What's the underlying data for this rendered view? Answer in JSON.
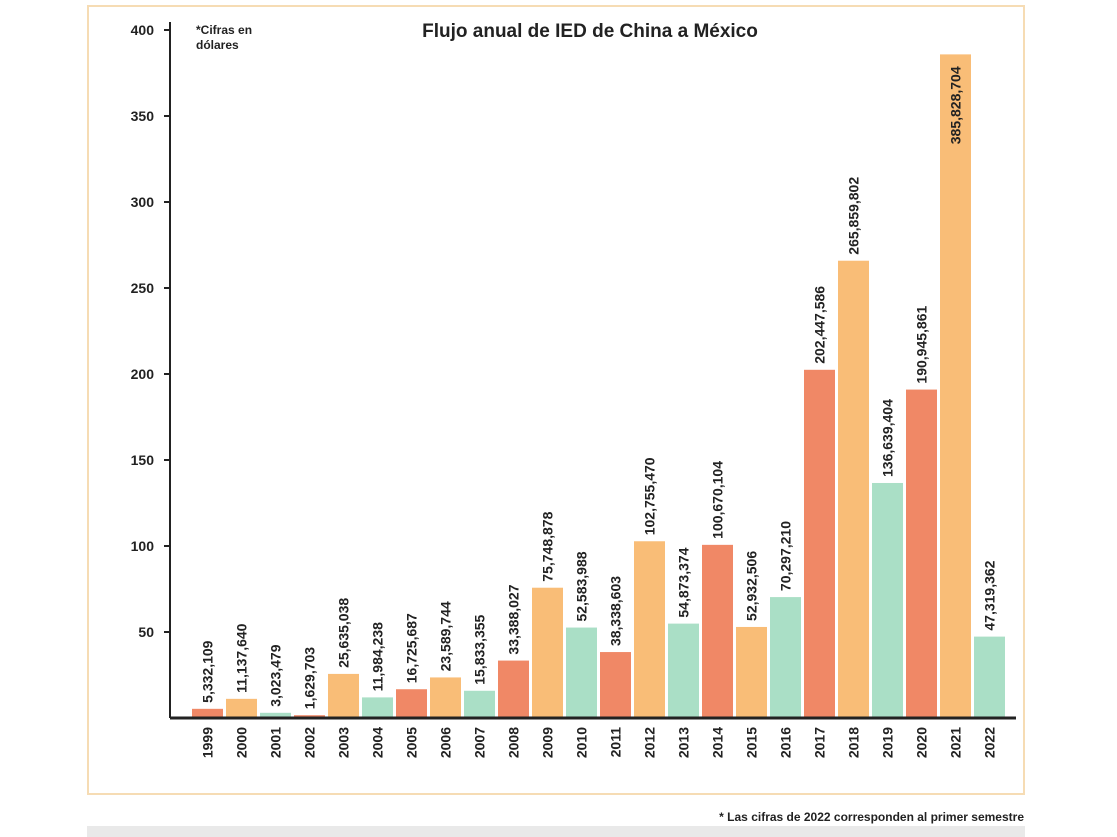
{
  "chart_data": {
    "type": "bar",
    "title": "Flujo anual de IED de China a México",
    "note_lines": [
      "*Cifras en",
      "dólares"
    ],
    "footnote": "* Las cifras de 2022 corresponden al primer semestre",
    "ylim": [
      0,
      400
    ],
    "yticks": [
      50,
      100,
      150,
      200,
      250,
      300,
      350,
      400
    ],
    "grid": false,
    "colors": {
      "coral": "#f08866",
      "orange": "#f9bd77",
      "mint": "#aadfc6"
    },
    "bars": [
      {
        "year": "1999",
        "value": 5332109,
        "label": "5,332,109",
        "color": "coral"
      },
      {
        "year": "2000",
        "value": 11137640,
        "label": "11,137,640",
        "color": "orange"
      },
      {
        "year": "2001",
        "value": 3023479,
        "label": "3,023,479",
        "color": "mint"
      },
      {
        "year": "2002",
        "value": 1629703,
        "label": "1,629,703",
        "color": "coral"
      },
      {
        "year": "2003",
        "value": 25635038,
        "label": "25,635,038",
        "color": "orange"
      },
      {
        "year": "2004",
        "value": 11984238,
        "label": "11,984,238",
        "color": "mint"
      },
      {
        "year": "2005",
        "value": 16725687,
        "label": "16,725,687",
        "color": "coral"
      },
      {
        "year": "2006",
        "value": 23589744,
        "label": "23,589,744",
        "color": "orange"
      },
      {
        "year": "2007",
        "value": 15833355,
        "label": "15,833,355",
        "color": "mint"
      },
      {
        "year": "2008",
        "value": 33388027,
        "label": "33,388,027",
        "color": "coral"
      },
      {
        "year": "2009",
        "value": 75748878,
        "label": "75,748,878",
        "color": "orange"
      },
      {
        "year": "2010",
        "value": 52583988,
        "label": "52,583,988",
        "color": "mint"
      },
      {
        "year": "2011",
        "value": 38338603,
        "label": "38,338,603",
        "color": "coral"
      },
      {
        "year": "2012",
        "value": 102755470,
        "label": "102,755,470",
        "color": "orange"
      },
      {
        "year": "2013",
        "value": 54873374,
        "label": "54,873,374",
        "color": "mint"
      },
      {
        "year": "2014",
        "value": 100670104,
        "label": "100,670,104",
        "color": "coral"
      },
      {
        "year": "2015",
        "value": 52932506,
        "label": "52,932,506",
        "color": "orange"
      },
      {
        "year": "2016",
        "value": 70297210,
        "label": "70,297,210",
        "color": "mint"
      },
      {
        "year": "2017",
        "value": 202447586,
        "label": "202,447,586",
        "color": "coral"
      },
      {
        "year": "2018",
        "value": 265859802,
        "label": "265,859,802",
        "color": "orange"
      },
      {
        "year": "2019",
        "value": 136639404,
        "label": "136,639,404",
        "color": "mint"
      },
      {
        "year": "2020",
        "value": 190945861,
        "label": "190,945,861",
        "color": "coral"
      },
      {
        "year": "2021",
        "value": 385828704,
        "label": "385,828,704",
        "color": "orange"
      },
      {
        "year": "2022",
        "value": 47319362,
        "label": "47,319,362",
        "color": "mint"
      }
    ]
  }
}
